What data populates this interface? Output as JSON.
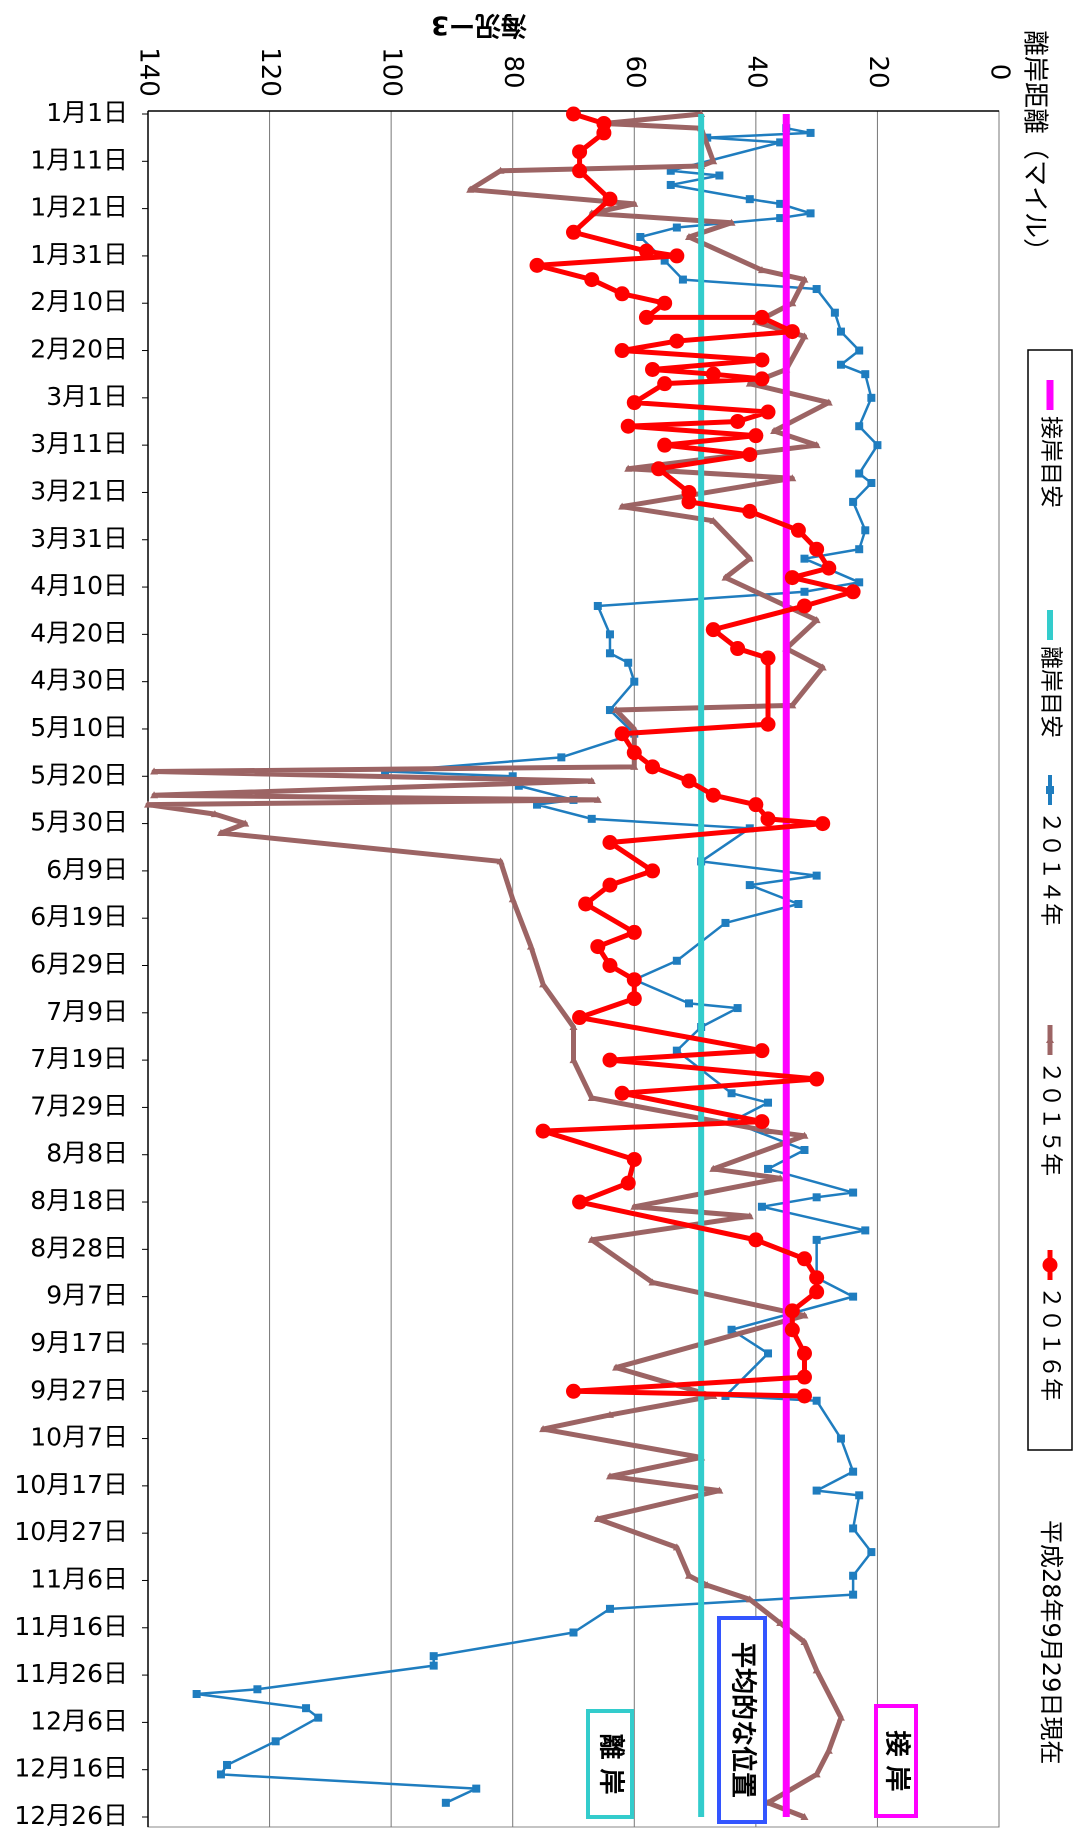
{
  "chart_data": {
    "type": "line",
    "title": "海況ー3",
    "y_label": "離岸距離（マイル）",
    "note": "平成28年9月29日現在",
    "annotations": [
      "接 岸",
      "平均的な位置",
      "離 岸"
    ],
    "ylim": [
      0,
      140
    ],
    "yticks": [
      0,
      20,
      40,
      60,
      80,
      100,
      120,
      140
    ],
    "xlim": [
      0,
      360
    ],
    "xticks": [
      {
        "value": 0,
        "label": "1月1日"
      },
      {
        "value": 10,
        "label": "1月11日"
      },
      {
        "value": 20,
        "label": "1月21日"
      },
      {
        "value": 30,
        "label": "1月31日"
      },
      {
        "value": 40,
        "label": "2月10日"
      },
      {
        "value": 50,
        "label": "2月20日"
      },
      {
        "value": 60,
        "label": "3月1日"
      },
      {
        "value": 70,
        "label": "3月11日"
      },
      {
        "value": 80,
        "label": "3月21日"
      },
      {
        "value": 90,
        "label": "3月31日"
      },
      {
        "value": 100,
        "label": "4月10日"
      },
      {
        "value": 110,
        "label": "4月20日"
      },
      {
        "value": 120,
        "label": "4月30日"
      },
      {
        "value": 130,
        "label": "5月10日"
      },
      {
        "value": 140,
        "label": "5月20日"
      },
      {
        "value": 150,
        "label": "5月30日"
      },
      {
        "value": 160,
        "label": "6月9日"
      },
      {
        "value": 170,
        "label": "6月19日"
      },
      {
        "value": 180,
        "label": "6月29日"
      },
      {
        "value": 190,
        "label": "7月9日"
      },
      {
        "value": 200,
        "label": "7月19日"
      },
      {
        "value": 210,
        "label": "7月29日"
      },
      {
        "value": 220,
        "label": "8月8日"
      },
      {
        "value": 230,
        "label": "8月18日"
      },
      {
        "value": 240,
        "label": "8月28日"
      },
      {
        "value": 250,
        "label": "9月7日"
      },
      {
        "value": 260,
        "label": "9月17日"
      },
      {
        "value": 270,
        "label": "9月27日"
      },
      {
        "value": 280,
        "label": "10月7日"
      },
      {
        "value": 290,
        "label": "10月17日"
      },
      {
        "value": 300,
        "label": "10月27日"
      },
      {
        "value": 310,
        "label": "11月6日"
      },
      {
        "value": 320,
        "label": "11月16日"
      },
      {
        "value": 330,
        "label": "11月26日"
      },
      {
        "value": 340,
        "label": "12月6日"
      },
      {
        "value": 350,
        "label": "12月16日"
      },
      {
        "value": 360,
        "label": "12月26日"
      }
    ],
    "grid": true,
    "series": [
      {
        "name": "接岸目安",
        "color": "#ff00ff",
        "x": [
          0,
          360
        ],
        "values": [
          35,
          35
        ]
      },
      {
        "name": "離岸目安",
        "color": "#33cccc",
        "x": [
          0,
          360
        ],
        "values": [
          49,
          49
        ]
      },
      {
        "name": "２０１４年",
        "color": "#1f7dbf",
        "marker": "square",
        "x": [
          3,
          4,
          5,
          6,
          12,
          13,
          15,
          18,
          19,
          21,
          22,
          24,
          26,
          31,
          35,
          37,
          42,
          46,
          50,
          53,
          55,
          60,
          66,
          70,
          76,
          78,
          82,
          88,
          92,
          94,
          99,
          101,
          104,
          110,
          114,
          116,
          120,
          126,
          131,
          136,
          139,
          140,
          142,
          145,
          146,
          149,
          151,
          158,
          161,
          163,
          167,
          171,
          179,
          183,
          188,
          189,
          193,
          198,
          207,
          209,
          213,
          219,
          223,
          228,
          229,
          231,
          236,
          238,
          246,
          250,
          257,
          262,
          271,
          272,
          280,
          287,
          291,
          292,
          299,
          304,
          309,
          313,
          316,
          321,
          326,
          328,
          333,
          334,
          337,
          339,
          344,
          349,
          351,
          354,
          357
        ],
        "values": [
          35,
          31,
          48,
          36,
          54,
          46,
          54,
          41,
          36,
          31,
          36,
          53,
          59,
          55,
          52,
          30,
          27,
          26,
          23,
          26,
          22,
          21,
          23,
          20,
          23,
          21,
          24,
          22,
          23,
          32,
          23,
          32,
          66,
          64,
          64,
          61,
          60,
          64,
          60,
          72,
          101,
          80,
          79,
          70,
          76,
          67,
          41,
          49,
          30,
          41,
          33,
          45,
          53,
          60,
          51,
          43,
          49,
          53,
          44,
          38,
          44,
          32,
          38,
          24,
          30,
          39,
          22,
          30,
          30,
          24,
          44,
          38,
          45,
          30,
          26,
          24,
          30,
          23,
          24,
          21,
          24,
          24,
          64,
          70,
          93,
          93,
          122,
          132,
          114,
          112,
          119,
          127,
          128,
          86,
          91
        ]
      },
      {
        "name": "２０１５年",
        "color": "#9c6464",
        "marker": "triangle",
        "x": [
          0,
          2,
          3,
          10,
          11,
          12,
          16,
          19,
          21,
          23,
          26,
          33,
          35,
          40,
          44,
          47,
          54,
          57,
          61,
          67,
          70,
          75,
          77,
          83,
          86,
          94,
          98,
          107,
          113,
          117,
          125,
          126,
          130,
          138,
          139,
          141,
          144,
          145,
          146,
          148,
          150,
          152,
          158,
          166,
          176,
          184,
          193,
          200,
          208,
          215,
          216,
          223,
          225,
          231,
          233,
          238,
          247,
          254,
          265,
          271,
          275,
          278,
          284,
          288,
          291,
          297,
          303,
          309,
          311,
          314,
          319,
          323,
          329,
          339,
          346,
          351,
          357,
          360
        ],
        "values": [
          49,
          65,
          49,
          47,
          49,
          82,
          87,
          60,
          67,
          44,
          51,
          39,
          32,
          34,
          40,
          32,
          35,
          41,
          28,
          37,
          30,
          61,
          34,
          62,
          47,
          41,
          45,
          30,
          35,
          29,
          34,
          63,
          60,
          60,
          139,
          67,
          139,
          66,
          140,
          129,
          124,
          128,
          82,
          80,
          77,
          75,
          70,
          70,
          67,
          38,
          32,
          47,
          36,
          60,
          41,
          67,
          57,
          32,
          63,
          47,
          64,
          75,
          49,
          64,
          46,
          66,
          53,
          51,
          48,
          41,
          36,
          32,
          30,
          26,
          28,
          30,
          38,
          32
        ]
      },
      {
        "name": "２０１６年",
        "color": "#ff0000",
        "marker": "circle",
        "x": [
          0,
          2,
          4,
          8,
          12,
          18,
          25,
          29,
          30,
          32,
          35,
          38,
          40,
          43,
          43,
          46,
          48,
          50,
          52,
          54,
          55,
          56,
          57,
          61,
          63,
          65,
          66,
          68,
          70,
          72,
          75,
          80,
          82,
          84,
          88,
          92,
          96,
          98,
          101,
          104,
          109,
          113,
          115,
          129,
          131,
          135,
          138,
          141,
          144,
          146,
          149,
          150,
          154,
          160,
          163,
          167,
          173,
          176,
          180,
          183,
          187,
          191,
          198,
          200,
          204,
          207,
          213,
          215,
          221,
          226,
          230,
          238,
          242,
          246,
          249,
          253,
          257,
          262,
          267,
          270,
          271
        ],
        "values": [
          70,
          65,
          65,
          69,
          69,
          64,
          70,
          58,
          53,
          76,
          67,
          62,
          55,
          58,
          39,
          34,
          53,
          62,
          39,
          57,
          47,
          39,
          55,
          60,
          38,
          43,
          61,
          40,
          55,
          41,
          56,
          51,
          51,
          41,
          33,
          30,
          28,
          34,
          24,
          32,
          47,
          43,
          38,
          38,
          62,
          60,
          57,
          51,
          47,
          40,
          38,
          29,
          64,
          57,
          64,
          68,
          60,
          66,
          64,
          60,
          60,
          69,
          39,
          64,
          30,
          62,
          39,
          75,
          60,
          61,
          69,
          40,
          32,
          30,
          30,
          34,
          34,
          32,
          32,
          70,
          32
        ]
      }
    ]
  }
}
